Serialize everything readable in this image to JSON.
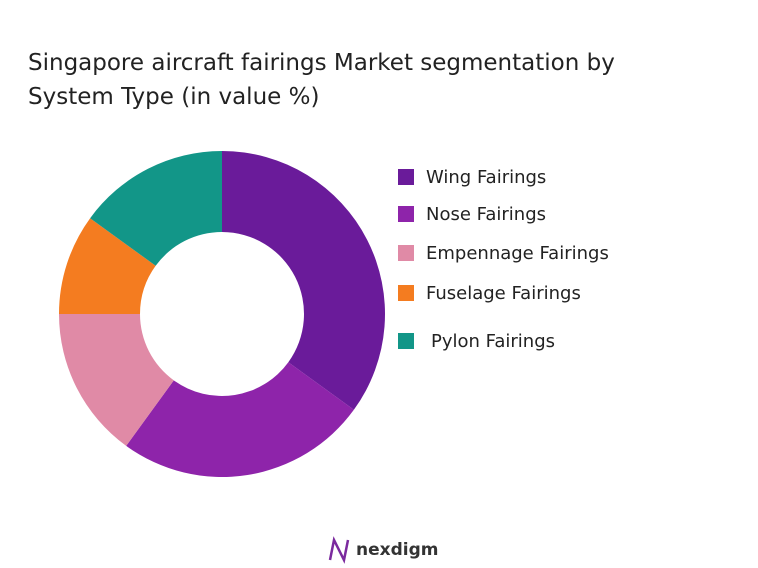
{
  "chart_data": {
    "type": "donut",
    "title": "Singapore aircraft fairings Market segmentation by System Type (in value %)",
    "categories": [
      "Wing Fairings",
      "Nose Fairings",
      "Empennage Fairings",
      "Fuselage Fairings",
      "Pylon Fairings"
    ],
    "values": [
      35,
      25,
      15,
      10,
      15
    ],
    "colors": [
      "#6a1b9a",
      "#8e24aa",
      "#e08aa6",
      "#f47c20",
      "#129688"
    ],
    "legend": "right"
  },
  "brand": "nexdigm"
}
